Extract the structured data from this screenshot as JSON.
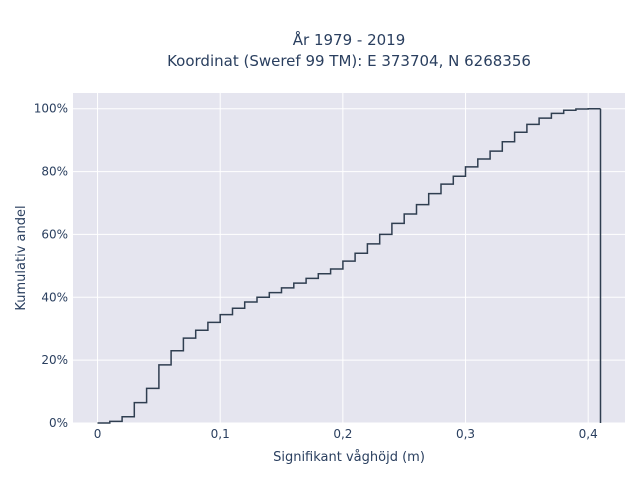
{
  "chart_data": {
    "type": "line",
    "subtype": "empirical cumulative distribution (step)",
    "title": [
      "År 1979 - 2019",
      "Koordinat (Sweref 99 TM): E 373704, N 6268356"
    ],
    "xlabel": "Signifikant våghöjd (m)",
    "ylabel": "Kumulativ andel",
    "xlim": [
      -0.02,
      0.43
    ],
    "ylim": [
      0,
      1.05
    ],
    "x_ticks": [
      0,
      0.1,
      0.2,
      0.3,
      0.4
    ],
    "x_tick_labels": [
      "0",
      "0,1",
      "0,2",
      "0,3",
      "0,4"
    ],
    "y_ticks": [
      0,
      0.2,
      0.4,
      0.6,
      0.8,
      1.0
    ],
    "y_tick_labels": [
      "0%",
      "20%",
      "40%",
      "60%",
      "80%",
      "100%"
    ],
    "grid": true,
    "legend": "none",
    "colors": {
      "background": "#e5e5ef",
      "grid": "#ffffff",
      "line": "#2f3e50",
      "text": "#2a3f5f"
    },
    "series": [
      {
        "x": [
          0,
          0.01,
          0.02,
          0.03,
          0.04,
          0.05,
          0.06,
          0.07,
          0.08,
          0.09,
          0.1,
          0.11,
          0.12,
          0.13,
          0.14,
          0.15,
          0.16,
          0.17,
          0.18,
          0.19,
          0.2,
          0.21,
          0.22,
          0.23,
          0.24,
          0.25,
          0.26,
          0.27,
          0.28,
          0.29,
          0.3,
          0.31,
          0.32,
          0.33,
          0.34,
          0.35,
          0.36,
          0.37,
          0.38,
          0.39,
          0.4,
          0.41
        ],
        "y": [
          0.0,
          0.005,
          0.02,
          0.065,
          0.11,
          0.185,
          0.23,
          0.27,
          0.295,
          0.32,
          0.345,
          0.365,
          0.385,
          0.4,
          0.415,
          0.43,
          0.445,
          0.46,
          0.475,
          0.49,
          0.515,
          0.54,
          0.57,
          0.6,
          0.635,
          0.665,
          0.695,
          0.73,
          0.76,
          0.785,
          0.815,
          0.84,
          0.865,
          0.895,
          0.925,
          0.95,
          0.97,
          0.985,
          0.995,
          0.999,
          1.0,
          1.0
        ]
      }
    ]
  }
}
